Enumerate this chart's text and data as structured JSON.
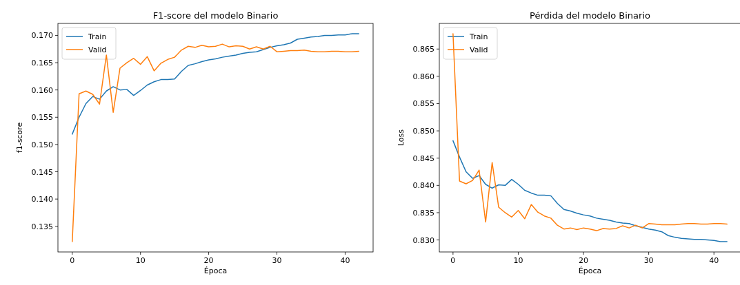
{
  "chart_data": [
    {
      "type": "line",
      "title": "F1-score del modelo Binario",
      "xlabel": "Época",
      "ylabel": "f1-score",
      "x": [
        0,
        1,
        2,
        3,
        4,
        5,
        6,
        7,
        8,
        9,
        10,
        11,
        12,
        13,
        14,
        15,
        16,
        17,
        18,
        19,
        20,
        21,
        22,
        23,
        24,
        25,
        26,
        27,
        28,
        29,
        30,
        31,
        32,
        33,
        34,
        35,
        36,
        37,
        38,
        39,
        40,
        41,
        42
      ],
      "series": [
        {
          "name": "Train",
          "color": "#1f77b4",
          "values": [
            0.1519,
            0.155,
            0.1575,
            0.1588,
            0.1583,
            0.1598,
            0.1606,
            0.16,
            0.1601,
            0.159,
            0.1599,
            0.1609,
            0.1615,
            0.1619,
            0.1619,
            0.162,
            0.1634,
            0.1645,
            0.1648,
            0.1652,
            0.1655,
            0.1657,
            0.166,
            0.1662,
            0.1664,
            0.1667,
            0.1669,
            0.167,
            0.1674,
            0.1678,
            0.1681,
            0.1683,
            0.1686,
            0.1693,
            0.1695,
            0.1697,
            0.1698,
            0.17,
            0.17,
            0.1701,
            0.1701,
            0.1703,
            0.1703
          ]
        },
        {
          "name": "Valid",
          "color": "#ff7f0e",
          "values": [
            0.1322,
            0.1593,
            0.1598,
            0.1592,
            0.1574,
            0.1664,
            0.1559,
            0.164,
            0.165,
            0.1658,
            0.1647,
            0.1661,
            0.1635,
            0.1649,
            0.1656,
            0.166,
            0.1673,
            0.168,
            0.1678,
            0.1682,
            0.1679,
            0.168,
            0.1684,
            0.1679,
            0.1681,
            0.168,
            0.1675,
            0.1679,
            0.1675,
            0.168,
            0.167,
            0.1671,
            0.1672,
            0.1672,
            0.1673,
            0.1671,
            0.167,
            0.167,
            0.1671,
            0.1671,
            0.167,
            0.167,
            0.1671
          ]
        }
      ],
      "xlim": [
        -2.1,
        44.1
      ],
      "xticks": [
        0,
        10,
        20,
        30,
        40
      ],
      "ylim": [
        0.1303,
        0.1722
      ],
      "yticks": [
        {
          "value": 0.135,
          "label": "0.135"
        },
        {
          "value": 0.14,
          "label": "0.140"
        },
        {
          "value": 0.145,
          "label": "0.145"
        },
        {
          "value": 0.15,
          "label": "0.150"
        },
        {
          "value": 0.155,
          "label": "0.155"
        },
        {
          "value": 0.16,
          "label": "0.160"
        },
        {
          "value": 0.165,
          "label": "0.165"
        },
        {
          "value": 0.17,
          "label": "0.170"
        }
      ],
      "legend": "top left",
      "grid": false
    },
    {
      "type": "line",
      "title": "Pérdida del modelo Binario",
      "xlabel": "Época",
      "ylabel": "Loss",
      "x": [
        0,
        1,
        2,
        3,
        4,
        5,
        6,
        7,
        8,
        9,
        10,
        11,
        12,
        13,
        14,
        15,
        16,
        17,
        18,
        19,
        20,
        21,
        22,
        23,
        24,
        25,
        26,
        27,
        28,
        29,
        30,
        31,
        32,
        33,
        34,
        35,
        36,
        37,
        38,
        39,
        40,
        41,
        42
      ],
      "series": [
        {
          "name": "Train",
          "color": "#1f77b4",
          "values": [
            0.8482,
            0.8452,
            0.8425,
            0.8413,
            0.8418,
            0.8402,
            0.8395,
            0.8401,
            0.84,
            0.8411,
            0.8402,
            0.8391,
            0.8386,
            0.8382,
            0.8382,
            0.8381,
            0.8367,
            0.8356,
            0.8353,
            0.8349,
            0.8346,
            0.8344,
            0.834,
            0.8338,
            0.8336,
            0.8333,
            0.8331,
            0.833,
            0.8326,
            0.8323,
            0.832,
            0.8318,
            0.8315,
            0.8308,
            0.8305,
            0.8303,
            0.8302,
            0.8301,
            0.8301,
            0.83,
            0.8299,
            0.8297,
            0.8297
          ]
        },
        {
          "name": "Valid",
          "color": "#ff7f0e",
          "values": [
            0.8678,
            0.8408,
            0.8403,
            0.8409,
            0.8428,
            0.8333,
            0.8442,
            0.836,
            0.835,
            0.8342,
            0.8354,
            0.8339,
            0.8365,
            0.8351,
            0.8344,
            0.834,
            0.8327,
            0.832,
            0.8322,
            0.8319,
            0.8322,
            0.832,
            0.8317,
            0.8321,
            0.832,
            0.8321,
            0.8326,
            0.8322,
            0.8327,
            0.8322,
            0.833,
            0.8329,
            0.8328,
            0.8328,
            0.8328,
            0.8329,
            0.833,
            0.833,
            0.8329,
            0.8329,
            0.833,
            0.833,
            0.8329
          ]
        }
      ],
      "xlim": [
        -2.1,
        44.1
      ],
      "xticks": [
        0,
        10,
        20,
        30,
        40
      ],
      "ylim": [
        0.8278,
        0.8697
      ],
      "yticks": [
        {
          "value": 0.83,
          "label": "0.830"
        },
        {
          "value": 0.835,
          "label": "0.835"
        },
        {
          "value": 0.84,
          "label": "0.840"
        },
        {
          "value": 0.845,
          "label": "0.845"
        },
        {
          "value": 0.85,
          "label": "0.850"
        },
        {
          "value": 0.855,
          "label": "0.855"
        },
        {
          "value": 0.86,
          "label": "0.860"
        },
        {
          "value": 0.865,
          "label": "0.865"
        }
      ],
      "legend": "top left",
      "grid": false
    }
  ]
}
